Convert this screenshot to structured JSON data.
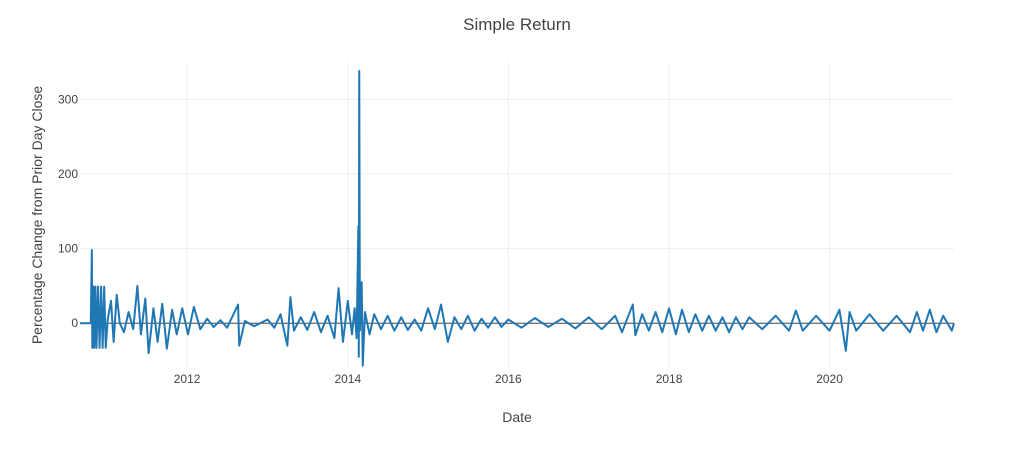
{
  "chart_data": {
    "type": "line",
    "title": "Simple Return",
    "xlabel": "Date",
    "ylabel": "Percentage Change from Prior Day Close",
    "x_range": [
      "2010-09-01",
      "2021-07-20"
    ],
    "ylim": [
      -60,
      350
    ],
    "x_ticks": [
      "2012",
      "2014",
      "2016",
      "2018",
      "2020"
    ],
    "y_ticks": [
      0,
      100,
      200,
      300
    ],
    "grid": true,
    "legend": "none",
    "line_color": "#1f77b4",
    "series": [
      {
        "points": [
          [
            "2010-09-01",
            0
          ],
          [
            "2010-10-20",
            0
          ],
          [
            "2010-10-25",
            98
          ],
          [
            "2010-10-27",
            -33
          ],
          [
            "2010-11-01",
            49
          ],
          [
            "2010-11-05",
            -33
          ],
          [
            "2010-11-10",
            49
          ],
          [
            "2010-11-15",
            -33
          ],
          [
            "2010-11-22",
            49
          ],
          [
            "2010-11-29",
            -33
          ],
          [
            "2010-12-06",
            49
          ],
          [
            "2010-12-13",
            -33
          ],
          [
            "2010-12-20",
            49
          ],
          [
            "2010-12-27",
            -33
          ],
          [
            "2011-01-05",
            5
          ],
          [
            "2011-01-20",
            30
          ],
          [
            "2011-02-01",
            -25
          ],
          [
            "2011-02-15",
            38
          ],
          [
            "2011-03-01",
            0
          ],
          [
            "2011-03-20",
            -12
          ],
          [
            "2011-04-10",
            15
          ],
          [
            "2011-05-01",
            -8
          ],
          [
            "2011-05-20",
            50
          ],
          [
            "2011-06-05",
            -15
          ],
          [
            "2011-06-25",
            33
          ],
          [
            "2011-07-10",
            -40
          ],
          [
            "2011-08-01",
            20
          ],
          [
            "2011-08-20",
            -25
          ],
          [
            "2011-09-10",
            26
          ],
          [
            "2011-10-01",
            -34
          ],
          [
            "2011-10-25",
            18
          ],
          [
            "2011-11-15",
            -15
          ],
          [
            "2011-12-10",
            20
          ],
          [
            "2012-01-05",
            -15
          ],
          [
            "2012-02-01",
            22
          ],
          [
            "2012-03-01",
            -8
          ],
          [
            "2012-04-01",
            6
          ],
          [
            "2012-05-01",
            -5
          ],
          [
            "2012-06-01",
            4
          ],
          [
            "2012-07-01",
            -6
          ],
          [
            "2012-08-20",
            25
          ],
          [
            "2012-08-25",
            -30
          ],
          [
            "2012-09-20",
            3
          ],
          [
            "2012-11-01",
            -4
          ],
          [
            "2013-01-01",
            5
          ],
          [
            "2013-02-01",
            -6
          ],
          [
            "2013-03-01",
            12
          ],
          [
            "2013-04-01",
            -30
          ],
          [
            "2013-04-15",
            35
          ],
          [
            "2013-05-01",
            -10
          ],
          [
            "2013-06-01",
            8
          ],
          [
            "2013-07-01",
            -9
          ],
          [
            "2013-08-01",
            15
          ],
          [
            "2013-09-01",
            -12
          ],
          [
            "2013-10-01",
            10
          ],
          [
            "2013-11-01",
            -20
          ],
          [
            "2013-11-20",
            47
          ],
          [
            "2013-12-10",
            -25
          ],
          [
            "2014-01-01",
            30
          ],
          [
            "2014-01-20",
            -15
          ],
          [
            "2014-02-01",
            20
          ],
          [
            "2014-02-10",
            -20
          ],
          [
            "2014-02-18",
            130
          ],
          [
            "2014-02-20",
            -45
          ],
          [
            "2014-02-22",
            338
          ],
          [
            "2014-02-25",
            -10
          ],
          [
            "2014-03-05",
            55
          ],
          [
            "2014-03-10",
            -57
          ],
          [
            "2014-03-20",
            15
          ],
          [
            "2014-04-10",
            -15
          ],
          [
            "2014-05-01",
            12
          ],
          [
            "2014-06-01",
            -8
          ],
          [
            "2014-07-01",
            10
          ],
          [
            "2014-08-01",
            -10
          ],
          [
            "2014-09-01",
            8
          ],
          [
            "2014-10-01",
            -9
          ],
          [
            "2014-11-01",
            5
          ],
          [
            "2014-12-01",
            -10
          ],
          [
            "2015-01-01",
            20
          ],
          [
            "2015-02-01",
            -8
          ],
          [
            "2015-03-01",
            25
          ],
          [
            "2015-04-01",
            -25
          ],
          [
            "2015-05-01",
            8
          ],
          [
            "2015-06-01",
            -8
          ],
          [
            "2015-07-01",
            10
          ],
          [
            "2015-08-01",
            -10
          ],
          [
            "2015-09-01",
            6
          ],
          [
            "2015-10-01",
            -6
          ],
          [
            "2015-11-01",
            8
          ],
          [
            "2015-12-01",
            -5
          ],
          [
            "2016-01-01",
            5
          ],
          [
            "2016-03-01",
            -6
          ],
          [
            "2016-05-01",
            7
          ],
          [
            "2016-07-01",
            -5
          ],
          [
            "2016-09-01",
            6
          ],
          [
            "2016-11-01",
            -7
          ],
          [
            "2017-01-01",
            8
          ],
          [
            "2017-03-01",
            -8
          ],
          [
            "2017-05-01",
            10
          ],
          [
            "2017-06-01",
            -12
          ],
          [
            "2017-07-20",
            25
          ],
          [
            "2017-08-01",
            -16
          ],
          [
            "2017-09-01",
            12
          ],
          [
            "2017-10-01",
            -10
          ],
          [
            "2017-11-01",
            15
          ],
          [
            "2017-12-01",
            -12
          ],
          [
            "2018-01-01",
            20
          ],
          [
            "2018-02-01",
            -15
          ],
          [
            "2018-03-01",
            18
          ],
          [
            "2018-04-01",
            -12
          ],
          [
            "2018-05-01",
            12
          ],
          [
            "2018-06-01",
            -10
          ],
          [
            "2018-07-01",
            10
          ],
          [
            "2018-08-01",
            -10
          ],
          [
            "2018-09-01",
            8
          ],
          [
            "2018-10-01",
            -12
          ],
          [
            "2018-11-01",
            8
          ],
          [
            "2018-12-01",
            -8
          ],
          [
            "2019-01-01",
            8
          ],
          [
            "2019-03-01",
            -8
          ],
          [
            "2019-05-01",
            10
          ],
          [
            "2019-07-01",
            -10
          ],
          [
            "2019-08-01",
            17
          ],
          [
            "2019-09-01",
            -10
          ],
          [
            "2019-11-01",
            10
          ],
          [
            "2020-01-01",
            -10
          ],
          [
            "2020-02-15",
            18
          ],
          [
            "2020-03-01",
            -10
          ],
          [
            "2020-03-15",
            -37
          ],
          [
            "2020-04-01",
            15
          ],
          [
            "2020-05-01",
            -10
          ],
          [
            "2020-07-01",
            12
          ],
          [
            "2020-09-01",
            -10
          ],
          [
            "2020-11-01",
            10
          ],
          [
            "2021-01-01",
            -12
          ],
          [
            "2021-02-01",
            15
          ],
          [
            "2021-03-01",
            -10
          ],
          [
            "2021-04-01",
            18
          ],
          [
            "2021-05-01",
            -12
          ],
          [
            "2021-06-01",
            10
          ],
          [
            "2021-07-10",
            -10
          ],
          [
            "2021-07-20",
            0
          ]
        ]
      }
    ]
  }
}
